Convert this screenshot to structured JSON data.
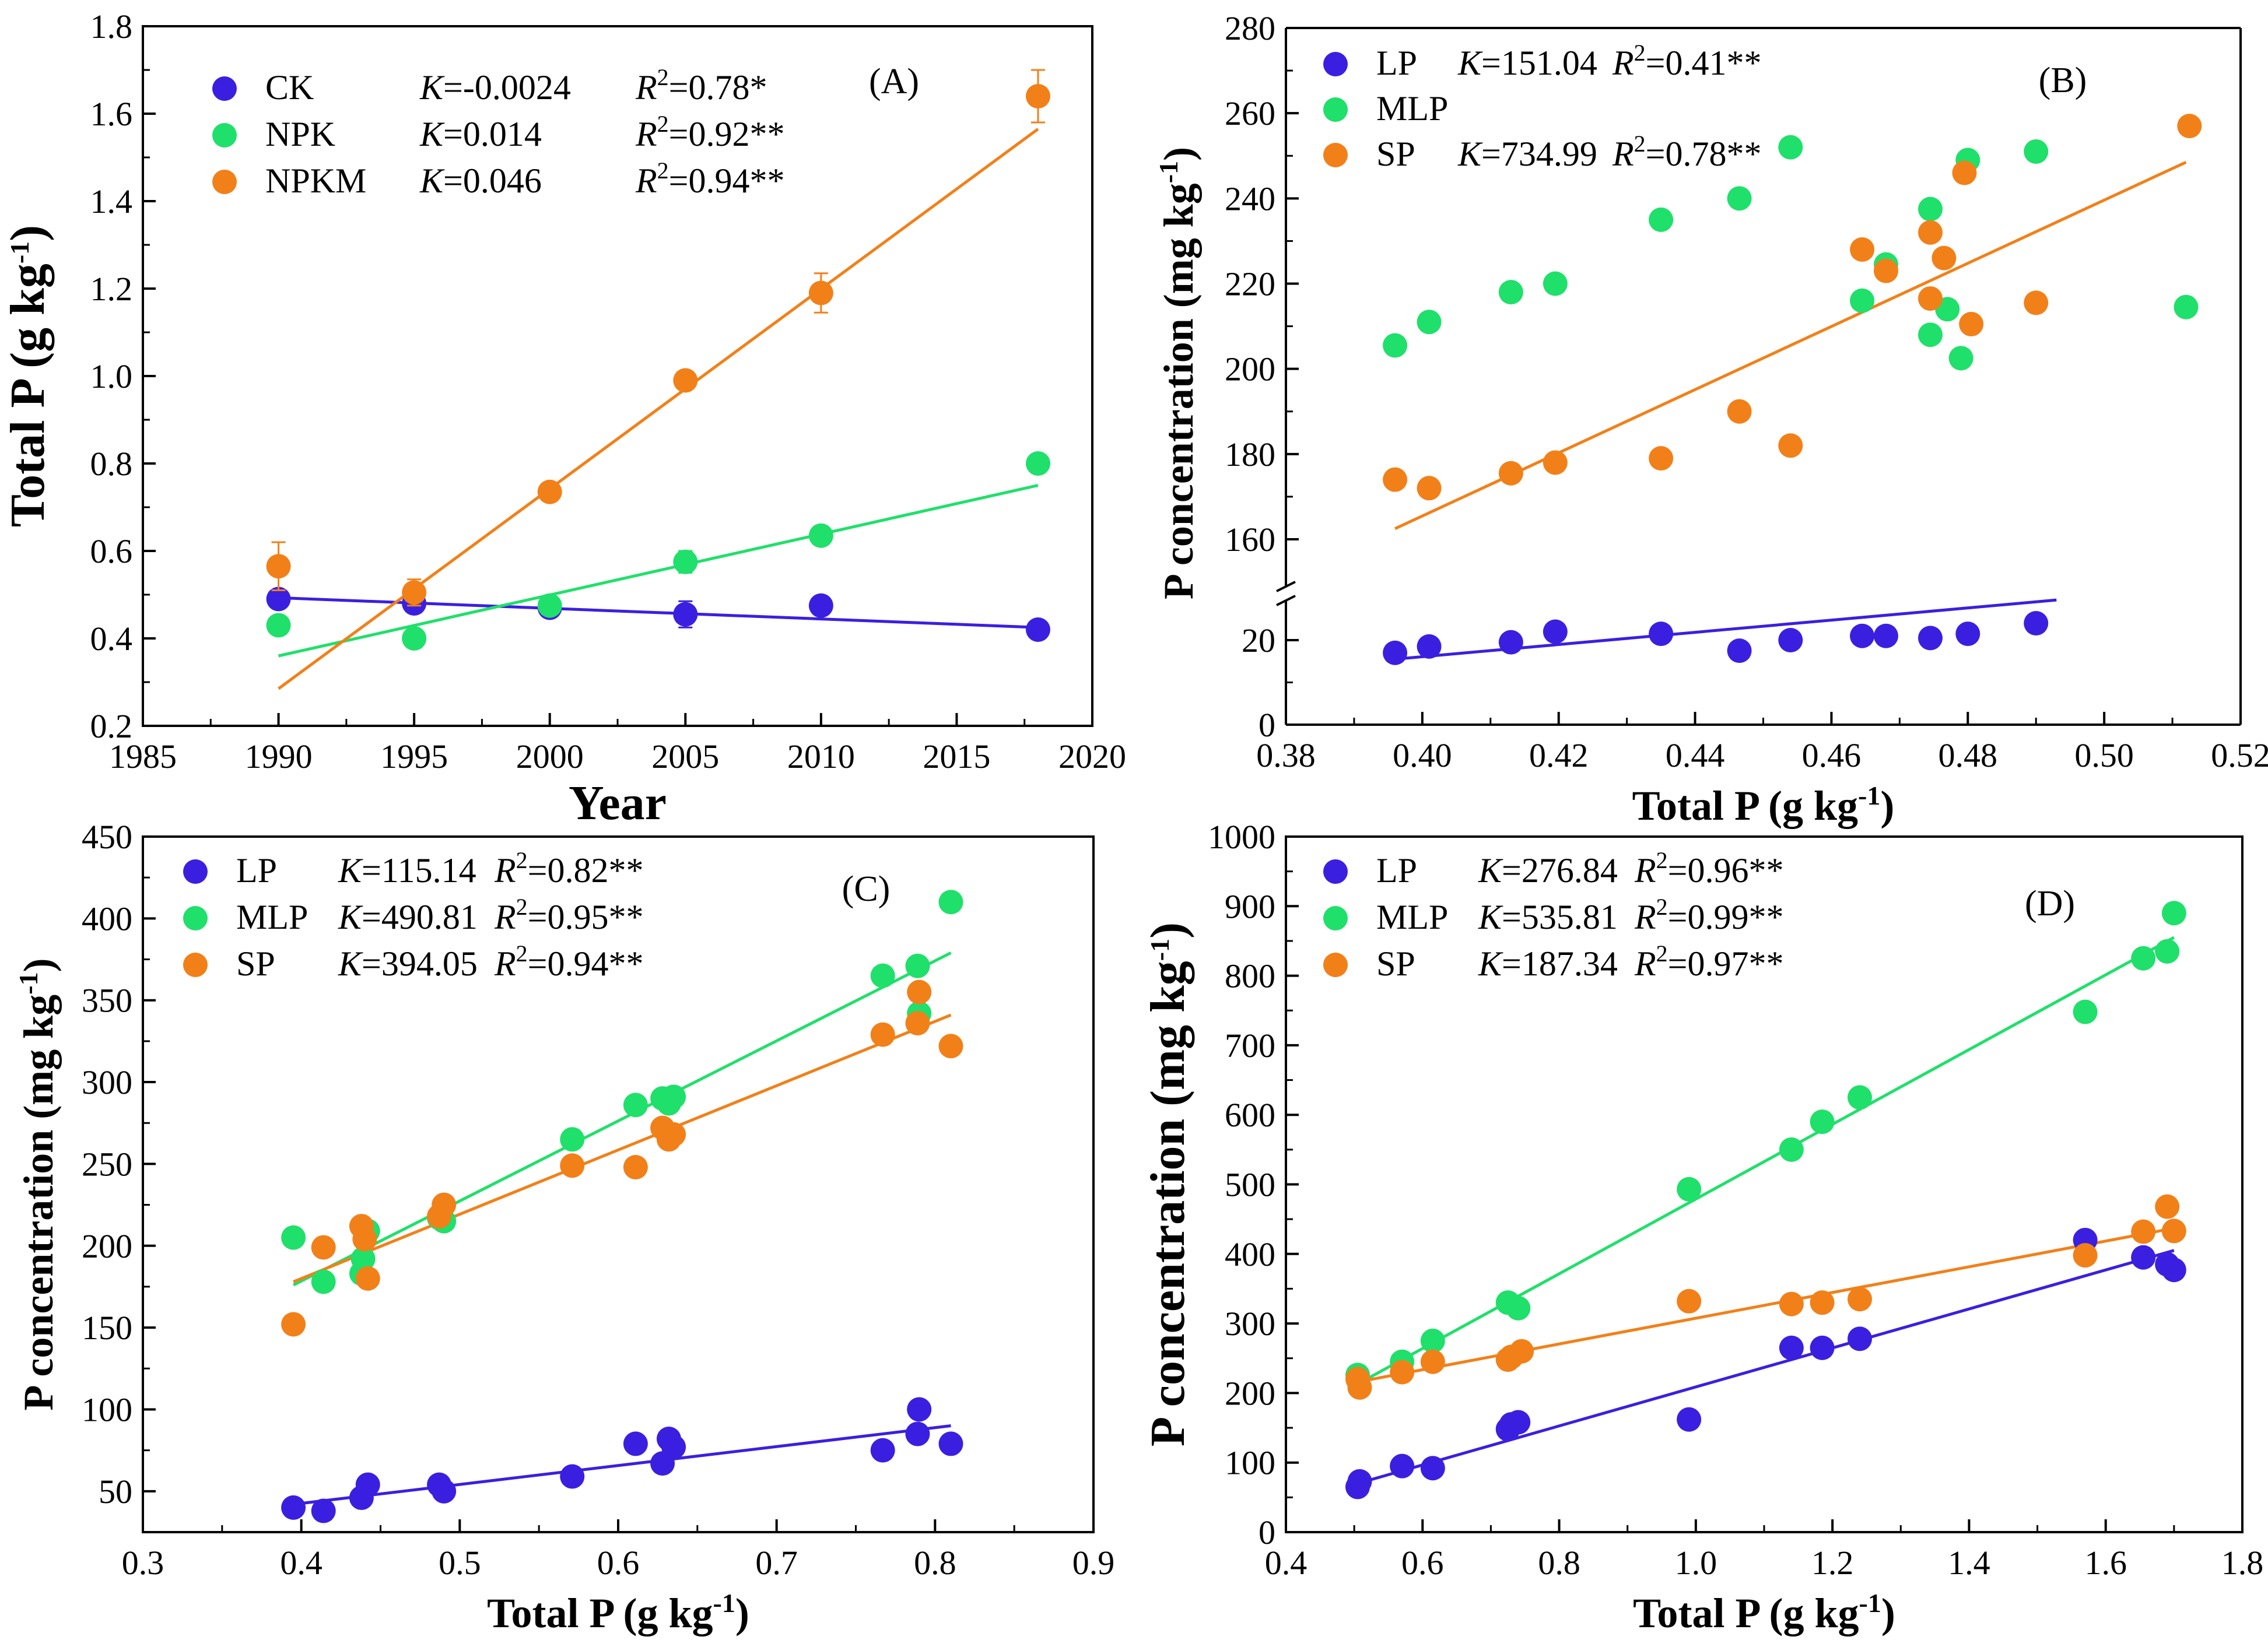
{
  "chart_data": [
    {
      "panel": "A",
      "type": "scatter",
      "panel_label": "(A)",
      "xlabel": "Year",
      "ylabel": "Total P (g kg⁻¹)",
      "ylabel_base": "Total P (g kg",
      "ylabel_sup": "-1",
      "ylabel_end": ")",
      "xlim": [
        1985,
        2020
      ],
      "ylim": [
        0.2,
        1.8
      ],
      "xticks": [
        1985,
        1990,
        1995,
        2000,
        2005,
        2010,
        2015,
        2020
      ],
      "yticks": [
        0.2,
        0.4,
        0.6,
        0.8,
        1.0,
        1.2,
        1.4,
        1.6,
        1.8
      ],
      "ytick_labels": [
        "0.2",
        "0.4",
        "0.6",
        "0.8",
        "1.0",
        "1.2",
        "1.4",
        "1.6",
        "1.8"
      ],
      "series": [
        {
          "name": "CK",
          "color": "#3B1FE0",
          "k": "K=-0.0024",
          "r2": "=0.78*",
          "x": [
            1990,
            1995,
            2000,
            2005,
            2010,
            2018
          ],
          "y": [
            0.49,
            0.48,
            0.47,
            0.455,
            0.475,
            0.42
          ],
          "err": [
            0.02,
            0.02,
            0.015,
            0.03,
            0.02,
            0.01
          ],
          "fit": [
            [
              1990,
              0.493
            ],
            [
              2018,
              0.425
            ]
          ]
        },
        {
          "name": "NPK",
          "color": "#1FE06A",
          "k": "K=0.014",
          "r2": "=0.92**",
          "x": [
            1990,
            1995,
            2000,
            2005,
            2010,
            2018
          ],
          "y": [
            0.43,
            0.4,
            0.475,
            0.575,
            0.635,
            0.8
          ],
          "err": [
            0,
            0,
            0,
            0.025,
            0,
            0
          ],
          "fit": [
            [
              1990,
              0.36
            ],
            [
              2018,
              0.75
            ]
          ]
        },
        {
          "name": "NPKM",
          "color": "#F28018",
          "k": "K=0.046",
          "r2": "=0.94**",
          "x": [
            1990,
            1995,
            2000,
            2005,
            2010,
            2018
          ],
          "y": [
            0.565,
            0.505,
            0.735,
            0.99,
            1.19,
            1.64
          ],
          "err": [
            0.055,
            0.03,
            0,
            0,
            0.045,
            0.06
          ],
          "fit": [
            [
              1990,
              0.285
            ],
            [
              2018,
              1.565
            ]
          ]
        }
      ]
    },
    {
      "panel": "B",
      "type": "scatter",
      "panel_label": "(B)",
      "xlabel": "Total P (g kg⁻¹)",
      "xlabel_base": "Total P (g kg",
      "xlabel_sup": "-1",
      "xlabel_end": ")",
      "ylabel": "P concentration (mg kg⁻¹)",
      "ylabel_base": "P concentration (mg kg",
      "ylabel_sup": "-1",
      "ylabel_end": ")",
      "xlim": [
        0.38,
        0.52
      ],
      "ylim": [
        0,
        280
      ],
      "axis_break": "between 30 and 150",
      "xticks": [
        0.38,
        0.4,
        0.42,
        0.44,
        0.46,
        0.48,
        0.5,
        0.52
      ],
      "xtick_labels": [
        "0.38",
        "0.40",
        "0.42",
        "0.44",
        "0.46",
        "0.48",
        "0.50",
        "0.52"
      ],
      "yticks_lower": [
        0,
        20
      ],
      "yticks_upper": [
        160,
        180,
        200,
        220,
        240,
        260,
        280
      ],
      "series": [
        {
          "name": "LP",
          "color": "#3B1FE0",
          "k": "K=151.04",
          "r2": "=0.41**",
          "x": [
            0.396,
            0.401,
            0.413,
            0.4195,
            0.435,
            0.4465,
            0.454,
            0.4645,
            0.468,
            0.4745,
            0.48,
            0.49
          ],
          "y": [
            17,
            18.5,
            19.5,
            22,
            21.5,
            17.5,
            20,
            21,
            21,
            20.5,
            21.5,
            24
          ],
          "fit": [
            [
              0.396,
              15.5
            ],
            [
              0.493,
              29.5
            ]
          ]
        },
        {
          "name": "MLP",
          "color": "#1FE06A",
          "k": "",
          "r2": "",
          "x": [
            0.396,
            0.401,
            0.413,
            0.4195,
            0.435,
            0.4465,
            0.454,
            0.4645,
            0.468,
            0.4745,
            0.4745,
            0.477,
            0.479,
            0.48,
            0.49,
            0.512
          ],
          "y": [
            205.5,
            211,
            218,
            220,
            235,
            240,
            252,
            216,
            224.5,
            237.5,
            208,
            214,
            202.5,
            249,
            251,
            214.5
          ],
          "fit": null
        },
        {
          "name": "SP",
          "color": "#F28018",
          "k": "K=734.99",
          "r2": "=0.78**",
          "x": [
            0.396,
            0.401,
            0.413,
            0.4195,
            0.435,
            0.4465,
            0.454,
            0.4645,
            0.468,
            0.4745,
            0.4745,
            0.4765,
            0.4795,
            0.4805,
            0.49,
            0.5125
          ],
          "y": [
            174,
            172,
            175.5,
            178,
            179,
            190,
            182,
            228,
            223,
            232,
            216.5,
            226,
            246,
            210.5,
            215.5,
            257
          ],
          "fit": [
            [
              0.396,
              162.5
            ],
            [
              0.512,
              248.5
            ]
          ]
        }
      ]
    },
    {
      "panel": "C",
      "type": "scatter",
      "panel_label": "(C)",
      "xlabel": "Total P (g kg⁻¹)",
      "xlabel_base": "Total P (g kg",
      "xlabel_sup": "-1",
      "xlabel_end": ")",
      "ylabel": "P concentration (mg kg⁻¹)",
      "ylabel_base": "P concentration (mg kg",
      "ylabel_sup": "-1",
      "ylabel_end": ")",
      "xlim": [
        0.3,
        0.9
      ],
      "ylim": [
        25,
        450
      ],
      "xticks": [
        0.3,
        0.4,
        0.5,
        0.6,
        0.7,
        0.8,
        0.9
      ],
      "xtick_labels": [
        "0.3",
        "0.4",
        "0.5",
        "0.6",
        "0.7",
        "0.8",
        "0.9"
      ],
      "yticks": [
        50,
        100,
        150,
        200,
        250,
        300,
        350,
        400,
        450
      ],
      "series": [
        {
          "name": "LP",
          "color": "#3B1FE0",
          "k": "K=115.14",
          "r2": "=0.82**",
          "x": [
            0.395,
            0.414,
            0.438,
            0.442,
            0.487,
            0.49,
            0.571,
            0.611,
            0.628,
            0.632,
            0.635,
            0.767,
            0.789,
            0.79,
            0.81
          ],
          "y": [
            40,
            38,
            46,
            54,
            54,
            50,
            59,
            79,
            67,
            82,
            77,
            75,
            85,
            100,
            79
          ],
          "fit": [
            [
              0.395,
              42
            ],
            [
              0.81,
              90
            ]
          ]
        },
        {
          "name": "MLP",
          "color": "#1FE06A",
          "k": "K=490.81",
          "r2": "=0.95**",
          "x": [
            0.395,
            0.414,
            0.438,
            0.439,
            0.442,
            0.487,
            0.49,
            0.571,
            0.611,
            0.628,
            0.632,
            0.635,
            0.767,
            0.789,
            0.79,
            0.81
          ],
          "y": [
            205,
            178,
            183,
            192,
            209,
            217,
            215,
            265,
            286,
            290,
            287,
            291,
            365,
            371,
            342,
            410
          ],
          "fit": [
            [
              0.395,
              176
            ],
            [
              0.81,
              379
            ]
          ]
        },
        {
          "name": "SP",
          "color": "#F28018",
          "k": "K=394.05",
          "r2": "=0.94**",
          "x": [
            0.395,
            0.414,
            0.438,
            0.44,
            0.442,
            0.487,
            0.49,
            0.571,
            0.611,
            0.628,
            0.632,
            0.635,
            0.767,
            0.789,
            0.79,
            0.81
          ],
          "y": [
            152,
            199,
            212,
            204,
            180,
            218,
            225,
            249,
            248,
            272,
            265,
            268,
            329,
            336,
            355,
            322
          ],
          "fit": [
            [
              0.395,
              178
            ],
            [
              0.81,
              341
            ]
          ]
        }
      ]
    },
    {
      "panel": "D",
      "type": "scatter",
      "panel_label": "(D)",
      "xlabel": "Total P (g kg⁻¹)",
      "xlabel_base": "Total P (g kg",
      "xlabel_sup": "-1",
      "xlabel_end": ")",
      "ylabel": "P concentration (mg kg⁻¹)",
      "ylabel_base": "P concentration (mg kg",
      "ylabel_sup": "-1",
      "ylabel_end": ")",
      "xlim": [
        0.4,
        1.8
      ],
      "ylim": [
        0,
        1000
      ],
      "xticks": [
        0.4,
        0.6,
        0.8,
        1.0,
        1.2,
        1.4,
        1.6,
        1.8
      ],
      "xtick_labels": [
        "0.4",
        "0.6",
        "0.8",
        "1.0",
        "1.2",
        "1.4",
        "1.6",
        "1.8"
      ],
      "yticks": [
        0,
        100,
        200,
        300,
        400,
        500,
        600,
        700,
        800,
        900,
        1000
      ],
      "series": [
        {
          "name": "LP",
          "color": "#3B1FE0",
          "k": "K=276.84",
          "r2": "=0.96**",
          "x": [
            0.505,
            0.508,
            0.57,
            0.615,
            0.725,
            0.73,
            0.74,
            0.99,
            1.14,
            1.185,
            1.24,
            1.57,
            1.655,
            1.69,
            1.7
          ],
          "y": [
            65,
            73,
            95,
            92,
            148,
            155,
            158,
            162,
            265,
            265,
            278,
            420,
            395,
            385,
            377
          ],
          "fit": [
            [
              0.505,
              70
            ],
            [
              1.7,
              405
            ]
          ]
        },
        {
          "name": "MLP",
          "color": "#1FE06A",
          "k": "K=535.81",
          "r2": "=0.99**",
          "x": [
            0.505,
            0.57,
            0.615,
            0.725,
            0.74,
            0.99,
            1.14,
            1.185,
            1.24,
            1.57,
            1.655,
            1.69,
            1.7
          ],
          "y": [
            226,
            245,
            275,
            330,
            322,
            493,
            550,
            590,
            625,
            748,
            825,
            835,
            890
          ],
          "fit": [
            [
              0.505,
              213
            ],
            [
              1.7,
              855
            ]
          ]
        },
        {
          "name": "SP",
          "color": "#F28018",
          "k": "K=187.34",
          "r2": "=0.97**",
          "x": [
            0.505,
            0.508,
            0.57,
            0.615,
            0.725,
            0.73,
            0.745,
            0.99,
            1.14,
            1.185,
            1.24,
            1.57,
            1.655,
            1.69,
            1.7
          ],
          "y": [
            220,
            208,
            230,
            245,
            248,
            252,
            260,
            332,
            328,
            330,
            335,
            398,
            432,
            468,
            433
          ],
          "fit": [
            [
              0.505,
              216
            ],
            [
              1.7,
              437
            ]
          ]
        }
      ]
    }
  ]
}
